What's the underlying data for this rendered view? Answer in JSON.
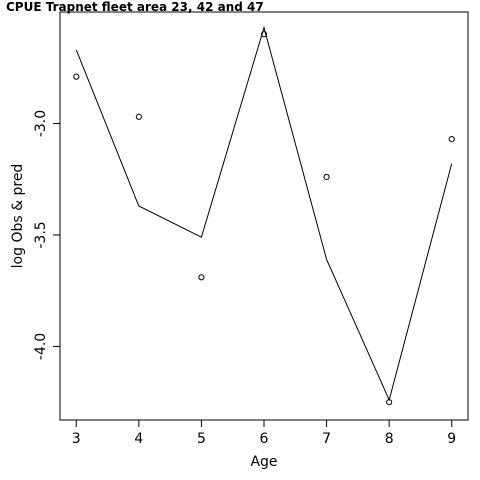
{
  "chart_data": {
    "type": "scatter",
    "title": "CPUE Trapnet fleet area 23, 42 and 47",
    "xlabel": "Age",
    "ylabel": "log Obs & pred",
    "x": [
      3,
      4,
      5,
      6,
      7,
      8,
      9
    ],
    "xlim": [
      2.74,
      9.26
    ],
    "ylim": [
      -4.33,
      -2.5
    ],
    "xticks": [
      3,
      4,
      5,
      6,
      7,
      8,
      9
    ],
    "yticks": [
      -4.0,
      -3.5,
      -3.0
    ],
    "ytick_labels": [
      "-4.0",
      "-3.5",
      "-3.0"
    ],
    "series": [
      {
        "style": "points",
        "values": [
          -2.79,
          -2.97,
          -3.69,
          -2.6,
          -3.24,
          -4.25,
          -3.07
        ]
      },
      {
        "style": "line",
        "values": [
          -2.67,
          -3.37,
          -3.51,
          -2.57,
          -3.61,
          -4.24,
          -3.18
        ]
      }
    ],
    "grid": false,
    "legend": "none"
  }
}
